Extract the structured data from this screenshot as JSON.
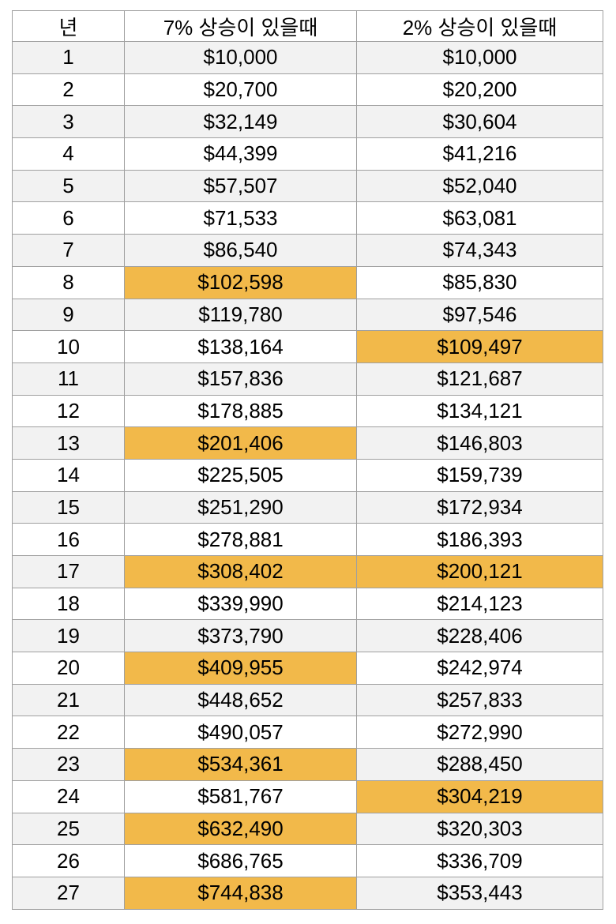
{
  "table": {
    "columns": [
      {
        "key": "year",
        "label": "년"
      },
      {
        "key": "v7",
        "label": "7% 상승이 있을때"
      },
      {
        "key": "v2",
        "label": "2% 상승이 있을때"
      }
    ],
    "rows": [
      {
        "year": "1",
        "v7": "$10,000",
        "v2": "$10,000",
        "h7": false,
        "h2": false
      },
      {
        "year": "2",
        "v7": "$20,700",
        "v2": "$20,200",
        "h7": false,
        "h2": false
      },
      {
        "year": "3",
        "v7": "$32,149",
        "v2": "$30,604",
        "h7": false,
        "h2": false
      },
      {
        "year": "4",
        "v7": "$44,399",
        "v2": "$41,216",
        "h7": false,
        "h2": false
      },
      {
        "year": "5",
        "v7": "$57,507",
        "v2": "$52,040",
        "h7": false,
        "h2": false
      },
      {
        "year": "6",
        "v7": "$71,533",
        "v2": "$63,081",
        "h7": false,
        "h2": false
      },
      {
        "year": "7",
        "v7": "$86,540",
        "v2": "$74,343",
        "h7": false,
        "h2": false
      },
      {
        "year": "8",
        "v7": "$102,598",
        "v2": "$85,830",
        "h7": true,
        "h2": false
      },
      {
        "year": "9",
        "v7": "$119,780",
        "v2": "$97,546",
        "h7": false,
        "h2": false
      },
      {
        "year": "10",
        "v7": "$138,164",
        "v2": "$109,497",
        "h7": false,
        "h2": true
      },
      {
        "year": "11",
        "v7": "$157,836",
        "v2": "$121,687",
        "h7": false,
        "h2": false
      },
      {
        "year": "12",
        "v7": "$178,885",
        "v2": "$134,121",
        "h7": false,
        "h2": false
      },
      {
        "year": "13",
        "v7": "$201,406",
        "v2": "$146,803",
        "h7": true,
        "h2": false
      },
      {
        "year": "14",
        "v7": "$225,505",
        "v2": "$159,739",
        "h7": false,
        "h2": false
      },
      {
        "year": "15",
        "v7": "$251,290",
        "v2": "$172,934",
        "h7": false,
        "h2": false
      },
      {
        "year": "16",
        "v7": "$278,881",
        "v2": "$186,393",
        "h7": false,
        "h2": false
      },
      {
        "year": "17",
        "v7": "$308,402",
        "v2": "$200,121",
        "h7": true,
        "h2": true
      },
      {
        "year": "18",
        "v7": "$339,990",
        "v2": "$214,123",
        "h7": false,
        "h2": false
      },
      {
        "year": "19",
        "v7": "$373,790",
        "v2": "$228,406",
        "h7": false,
        "h2": false
      },
      {
        "year": "20",
        "v7": "$409,955",
        "v2": "$242,974",
        "h7": true,
        "h2": false
      },
      {
        "year": "21",
        "v7": "$448,652",
        "v2": "$257,833",
        "h7": false,
        "h2": false
      },
      {
        "year": "22",
        "v7": "$490,057",
        "v2": "$272,990",
        "h7": false,
        "h2": false
      },
      {
        "year": "23",
        "v7": "$534,361",
        "v2": "$288,450",
        "h7": true,
        "h2": false
      },
      {
        "year": "24",
        "v7": "$581,767",
        "v2": "$304,219",
        "h7": false,
        "h2": true
      },
      {
        "year": "25",
        "v7": "$632,490",
        "v2": "$320,303",
        "h7": true,
        "h2": false
      },
      {
        "year": "26",
        "v7": "$686,765",
        "v2": "$336,709",
        "h7": false,
        "h2": false
      },
      {
        "year": "27",
        "v7": "$744,838",
        "v2": "$353,443",
        "h7": true,
        "h2": false
      }
    ]
  },
  "colors": {
    "highlight": "#f2b94a",
    "stripe": "#f2f2f2",
    "border": "#a0a0a0",
    "text": "#000000",
    "background": "#ffffff"
  },
  "chart_data": {
    "type": "table",
    "title": "",
    "columns": [
      "년",
      "7% 상승이 있을때",
      "2% 상승이 있을때"
    ],
    "x": [
      1,
      2,
      3,
      4,
      5,
      6,
      7,
      8,
      9,
      10,
      11,
      12,
      13,
      14,
      15,
      16,
      17,
      18,
      19,
      20,
      21,
      22,
      23,
      24,
      25,
      26,
      27
    ],
    "series": [
      {
        "name": "7% 상승이 있을때",
        "values": [
          10000,
          20700,
          32149,
          44399,
          57507,
          71533,
          86540,
          102598,
          119780,
          138164,
          157836,
          178885,
          201406,
          225505,
          251290,
          278881,
          308402,
          339990,
          373790,
          409955,
          448652,
          490057,
          534361,
          581767,
          632490,
          686765,
          744838
        ],
        "highlighted_years": [
          8,
          13,
          17,
          20,
          23,
          25,
          27
        ]
      },
      {
        "name": "2% 상승이 있을때",
        "values": [
          10000,
          20200,
          30604,
          41216,
          52040,
          63081,
          74343,
          85830,
          97546,
          109497,
          121687,
          134121,
          146803,
          159739,
          172934,
          186393,
          200121,
          214123,
          228406,
          242974,
          257833,
          272990,
          288450,
          304219,
          320303,
          336709,
          353443
        ],
        "highlighted_years": [
          10,
          17,
          24
        ]
      }
    ],
    "xlabel": "년",
    "ylabel": "",
    "currency": "USD",
    "layout": "zebra-striped table, highlighted cells mark each new $100k milestone"
  }
}
